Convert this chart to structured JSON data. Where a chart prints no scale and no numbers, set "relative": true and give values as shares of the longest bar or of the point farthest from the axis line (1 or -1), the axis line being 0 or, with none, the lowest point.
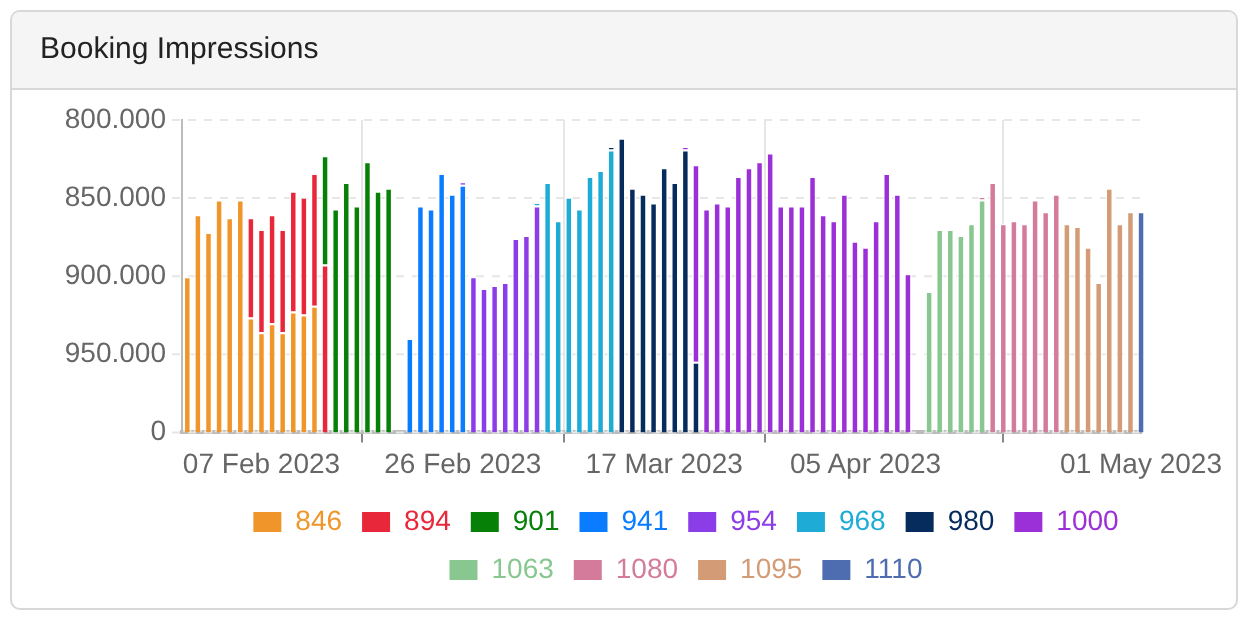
{
  "chart_data": {
    "type": "bar",
    "title": "Booking Impressions",
    "stacked": true,
    "relative": true,
    "grid": true,
    "legend": "bottom",
    "annotations": [
      "800.000",
      "850.000",
      "900.000",
      "950.000",
      "0"
    ],
    "x": [
      "2023-01-31",
      "2023-02-01",
      "2023-02-02",
      "2023-02-03",
      "2023-02-04",
      "2023-02-05",
      "2023-02-06",
      "2023-02-07",
      "2023-02-08",
      "2023-02-09",
      "2023-02-10",
      "2023-02-11",
      "2023-02-12",
      "2023-02-13",
      "2023-02-14",
      "2023-02-15",
      "2023-02-16",
      "2023-02-17",
      "2023-02-18",
      "2023-02-19",
      "2023-02-20",
      "2023-02-21",
      "2023-02-22",
      "2023-02-23",
      "2023-02-24",
      "2023-02-25",
      "2023-02-26",
      "2023-02-27",
      "2023-02-28",
      "2023-03-01",
      "2023-03-02",
      "2023-03-03",
      "2023-03-04",
      "2023-03-05",
      "2023-03-06",
      "2023-03-07",
      "2023-03-08",
      "2023-03-09",
      "2023-03-10",
      "2023-03-11",
      "2023-03-12",
      "2023-03-13",
      "2023-03-14",
      "2023-03-15",
      "2023-03-16",
      "2023-03-17",
      "2023-03-18",
      "2023-03-19",
      "2023-03-20",
      "2023-03-21",
      "2023-03-22",
      "2023-03-23",
      "2023-03-24",
      "2023-03-25",
      "2023-03-26",
      "2023-03-27",
      "2023-03-28",
      "2023-03-29",
      "2023-03-30",
      "2023-03-31",
      "2023-04-01",
      "2023-04-02",
      "2023-04-03",
      "2023-04-04",
      "2023-04-05",
      "2023-04-06",
      "2023-04-07",
      "2023-04-08",
      "2023-04-09",
      "2023-04-10",
      "2023-04-11",
      "2023-04-12",
      "2023-04-13",
      "2023-04-14",
      "2023-04-15",
      "2023-04-16",
      "2023-04-17",
      "2023-04-18",
      "2023-04-19",
      "2023-04-20",
      "2023-04-21",
      "2023-04-22",
      "2023-04-23",
      "2023-04-24",
      "2023-04-25",
      "2023-04-26",
      "2023-04-27",
      "2023-04-28",
      "2023-04-29",
      "2023-04-30",
      "2023-05-01"
    ],
    "xlim": [
      "2023-01-30T12:00",
      "2023-05-01"
    ],
    "xticks": [
      {
        "value": "2023-02-07",
        "label": "07 Feb 2023"
      },
      {
        "value": "2023-02-26",
        "label": "26 Feb 2023"
      },
      {
        "value": "2023-03-17",
        "label": "17 Mar 2023"
      },
      {
        "value": "2023-04-05",
        "label": "05 Apr 2023"
      },
      {
        "value": "2023-05-01",
        "label": "01 May 2023"
      }
    ],
    "series": [
      {
        "name": "846",
        "color": "#f0952a",
        "values": [
          0.53,
          0.74,
          0.68,
          0.79,
          0.73,
          0.79,
          0.39,
          0.34,
          0.37,
          0.34,
          0.41,
          0.4,
          0.43,
          null,
          null,
          null,
          null,
          null,
          null,
          null,
          null,
          null,
          null,
          null,
          null,
          null,
          null,
          null,
          null,
          null,
          null,
          null,
          null,
          null,
          null,
          null,
          null,
          null,
          null,
          null,
          null,
          null,
          null,
          null,
          null,
          null,
          null,
          null,
          null,
          null,
          null,
          null,
          null,
          null,
          null,
          null,
          null,
          null,
          null,
          null,
          null,
          null,
          null,
          null,
          null,
          null,
          null,
          null,
          null,
          null,
          null,
          null,
          null,
          null,
          null,
          null,
          null,
          null,
          null,
          null,
          null,
          null,
          null,
          null,
          null,
          null,
          null,
          null,
          null,
          null,
          null
        ]
      },
      {
        "name": "894",
        "color": "#e8283a",
        "values": [
          null,
          null,
          null,
          null,
          null,
          null,
          0.34,
          0.35,
          0.37,
          0.35,
          0.41,
          0.4,
          0.45,
          0.57,
          null,
          null,
          null,
          null,
          null,
          null,
          null,
          null,
          null,
          null,
          null,
          null,
          null,
          null,
          null,
          null,
          null,
          null,
          null,
          null,
          null,
          null,
          null,
          null,
          null,
          null,
          null,
          null,
          null,
          null,
          null,
          null,
          null,
          null,
          null,
          null,
          null,
          null,
          null,
          null,
          null,
          null,
          null,
          null,
          null,
          null,
          null,
          null,
          null,
          null,
          null,
          null,
          null,
          null,
          null,
          null,
          null,
          null,
          null,
          null,
          null,
          null,
          null,
          null,
          null,
          null,
          null,
          null,
          null,
          null,
          null,
          null,
          null,
          null,
          null,
          null,
          null
        ]
      },
      {
        "name": "901",
        "color": "#078007",
        "values": [
          null,
          null,
          null,
          null,
          null,
          null,
          null,
          null,
          null,
          null,
          null,
          null,
          null,
          0.37,
          0.76,
          0.85,
          0.77,
          0.92,
          0.82,
          0.83,
          null,
          null,
          null,
          null,
          null,
          null,
          null,
          null,
          null,
          null,
          null,
          null,
          null,
          null,
          null,
          null,
          null,
          null,
          null,
          null,
          null,
          null,
          null,
          null,
          null,
          null,
          null,
          null,
          null,
          null,
          null,
          null,
          null,
          null,
          null,
          null,
          null,
          null,
          null,
          null,
          null,
          null,
          null,
          null,
          null,
          null,
          null,
          null,
          null,
          null,
          null,
          null,
          null,
          null,
          null,
          null,
          null,
          null,
          null,
          null,
          null,
          null,
          null,
          null,
          null,
          null,
          null,
          null,
          null,
          null,
          null
        ]
      },
      {
        "name": "941",
        "color": "#0a7cff",
        "values": [
          null,
          null,
          null,
          null,
          null,
          null,
          null,
          null,
          null,
          null,
          null,
          null,
          null,
          null,
          null,
          null,
          null,
          null,
          null,
          null,
          null,
          0.32,
          0.77,
          0.76,
          0.88,
          0.81,
          0.84,
          null,
          null,
          null,
          null,
          null,
          null,
          null,
          null,
          null,
          null,
          null,
          null,
          null,
          null,
          null,
          null,
          null,
          null,
          null,
          null,
          null,
          null,
          null,
          null,
          null,
          null,
          null,
          null,
          null,
          null,
          null,
          null,
          null,
          null,
          null,
          null,
          null,
          null,
          null,
          null,
          null,
          null,
          null,
          null,
          null,
          null,
          null,
          null,
          null,
          null,
          null,
          null,
          null,
          null,
          null,
          null,
          null,
          null,
          null,
          null,
          null,
          null,
          null,
          null
        ]
      },
      {
        "name": "954",
        "color": "#8b3ee8",
        "values": [
          null,
          null,
          null,
          null,
          null,
          null,
          null,
          null,
          null,
          null,
          null,
          null,
          null,
          null,
          null,
          null,
          null,
          null,
          null,
          null,
          null,
          null,
          null,
          null,
          null,
          null,
          0.01,
          0.53,
          0.49,
          0.5,
          0.51,
          0.66,
          0.67,
          0.77,
          null,
          null,
          null,
          null,
          null,
          null,
          null,
          null,
          null,
          null,
          null,
          null,
          null,
          null,
          null,
          null,
          null,
          null,
          null,
          null,
          null,
          null,
          null,
          null,
          null,
          null,
          null,
          null,
          null,
          null,
          null,
          null,
          null,
          null,
          null,
          null,
          null,
          null,
          null,
          null,
          null,
          null,
          null,
          null,
          null,
          null,
          null,
          null,
          null,
          null,
          null,
          null,
          null,
          null,
          null,
          null,
          null
        ]
      },
      {
        "name": "968",
        "color": "#1eacd6",
        "values": [
          null,
          null,
          null,
          null,
          null,
          null,
          null,
          null,
          null,
          null,
          null,
          null,
          null,
          null,
          null,
          null,
          null,
          null,
          null,
          null,
          null,
          null,
          null,
          null,
          null,
          null,
          null,
          null,
          null,
          null,
          null,
          null,
          null,
          0.01,
          0.85,
          0.72,
          0.8,
          0.76,
          0.87,
          0.89,
          0.96,
          null,
          null,
          null,
          null,
          null,
          null,
          null,
          null,
          null,
          null,
          null,
          null,
          null,
          null,
          null,
          null,
          null,
          null,
          null,
          null,
          null,
          null,
          null,
          null,
          null,
          null,
          null,
          null,
          null,
          null,
          null,
          null,
          null,
          null,
          null,
          null,
          null,
          null,
          null,
          null,
          null,
          null,
          null,
          null,
          null,
          null,
          null,
          null,
          null,
          null
        ]
      },
      {
        "name": "980",
        "color": "#062c5e",
        "values": [
          null,
          null,
          null,
          null,
          null,
          null,
          null,
          null,
          null,
          null,
          null,
          null,
          null,
          null,
          null,
          null,
          null,
          null,
          null,
          null,
          null,
          null,
          null,
          null,
          null,
          null,
          null,
          null,
          null,
          null,
          null,
          null,
          null,
          null,
          null,
          null,
          null,
          null,
          null,
          null,
          0.01,
          1,
          0.83,
          0.81,
          0.78,
          0.9,
          0.85,
          0.96,
          0.24,
          null,
          null,
          null,
          null,
          null,
          null,
          null,
          null,
          null,
          null,
          null,
          null,
          null,
          null,
          null,
          null,
          null,
          null,
          null,
          null,
          null,
          null,
          null,
          null,
          null,
          null,
          null,
          null,
          null,
          null,
          null,
          null,
          null,
          null,
          null,
          null,
          null,
          null,
          null,
          null,
          null,
          null
        ]
      },
      {
        "name": "1000",
        "color": "#9b30d8",
        "values": [
          null,
          null,
          null,
          null,
          null,
          null,
          null,
          null,
          null,
          null,
          null,
          null,
          null,
          null,
          null,
          null,
          null,
          null,
          null,
          null,
          null,
          null,
          null,
          null,
          null,
          null,
          null,
          null,
          null,
          null,
          null,
          null,
          null,
          null,
          null,
          null,
          null,
          null,
          null,
          null,
          null,
          null,
          null,
          null,
          null,
          null,
          null,
          0.01,
          0.67,
          0.76,
          0.78,
          0.77,
          0.87,
          0.9,
          0.92,
          0.95,
          0.77,
          0.77,
          0.77,
          0.87,
          0.74,
          0.72,
          0.81,
          0.65,
          0.63,
          0.72,
          0.88,
          0.81,
          0.54,
          null,
          null,
          null,
          null,
          null,
          null,
          null,
          null,
          null,
          null,
          null,
          null,
          null,
          null,
          null,
          null,
          null,
          null,
          null,
          null,
          null,
          null
        ]
      },
      {
        "name": "1063",
        "color": "#88c78f",
        "values": [
          null,
          null,
          null,
          null,
          null,
          null,
          null,
          null,
          null,
          null,
          null,
          null,
          null,
          null,
          null,
          null,
          null,
          null,
          null,
          null,
          null,
          null,
          null,
          null,
          null,
          null,
          null,
          null,
          null,
          null,
          null,
          null,
          null,
          null,
          null,
          null,
          null,
          null,
          null,
          null,
          null,
          null,
          null,
          null,
          null,
          null,
          null,
          null,
          null,
          null,
          null,
          null,
          null,
          null,
          null,
          null,
          null,
          null,
          null,
          null,
          null,
          null,
          null,
          null,
          null,
          null,
          null,
          null,
          null,
          null,
          0.48,
          0.69,
          0.69,
          0.67,
          0.71,
          0.79,
          null,
          null,
          null,
          null,
          null,
          null,
          null,
          null,
          null,
          null,
          null,
          null,
          null,
          null,
          null
        ]
      },
      {
        "name": "1080",
        "color": "#d47b9b",
        "values": [
          null,
          null,
          null,
          null,
          null,
          null,
          null,
          null,
          null,
          null,
          null,
          null,
          null,
          null,
          null,
          null,
          null,
          null,
          null,
          null,
          null,
          null,
          null,
          null,
          null,
          null,
          null,
          null,
          null,
          null,
          null,
          null,
          null,
          null,
          null,
          null,
          null,
          null,
          null,
          null,
          null,
          null,
          null,
          null,
          null,
          null,
          null,
          null,
          null,
          null,
          null,
          null,
          null,
          null,
          null,
          null,
          null,
          null,
          null,
          null,
          null,
          null,
          null,
          null,
          null,
          null,
          null,
          null,
          null,
          null,
          null,
          null,
          null,
          null,
          null,
          0.01,
          0.85,
          0.71,
          0.72,
          0.71,
          0.79,
          0.75,
          0.81,
          null,
          null,
          null,
          null,
          null,
          null,
          null,
          null
        ]
      },
      {
        "name": "1095",
        "color": "#d39c76",
        "values": [
          null,
          null,
          null,
          null,
          null,
          null,
          null,
          null,
          null,
          null,
          null,
          null,
          null,
          null,
          null,
          null,
          null,
          null,
          null,
          null,
          null,
          null,
          null,
          null,
          null,
          null,
          null,
          null,
          null,
          null,
          null,
          null,
          null,
          null,
          null,
          null,
          null,
          null,
          null,
          null,
          null,
          null,
          null,
          null,
          null,
          null,
          null,
          null,
          null,
          null,
          null,
          null,
          null,
          null,
          null,
          null,
          null,
          null,
          null,
          null,
          null,
          null,
          null,
          null,
          null,
          null,
          null,
          null,
          null,
          null,
          null,
          null,
          null,
          null,
          null,
          null,
          null,
          null,
          null,
          null,
          null,
          null,
          null,
          0.71,
          0.7,
          0.63,
          0.51,
          0.83,
          0.71,
          0.75,
          null
        ]
      },
      {
        "name": "1110",
        "color": "#4e6db0",
        "values": [
          null,
          null,
          null,
          null,
          null,
          null,
          null,
          null,
          null,
          null,
          null,
          null,
          null,
          null,
          null,
          null,
          null,
          null,
          null,
          null,
          null,
          null,
          null,
          null,
          null,
          null,
          null,
          null,
          null,
          null,
          null,
          null,
          null,
          null,
          null,
          null,
          null,
          null,
          null,
          null,
          null,
          null,
          null,
          null,
          null,
          null,
          null,
          null,
          null,
          null,
          null,
          null,
          null,
          null,
          null,
          null,
          null,
          null,
          null,
          null,
          null,
          null,
          null,
          null,
          null,
          null,
          null,
          null,
          null,
          null,
          null,
          null,
          null,
          null,
          null,
          null,
          null,
          null,
          null,
          null,
          null,
          null,
          null,
          null,
          null,
          null,
          null,
          null,
          null,
          null,
          0.75
        ]
      }
    ]
  }
}
